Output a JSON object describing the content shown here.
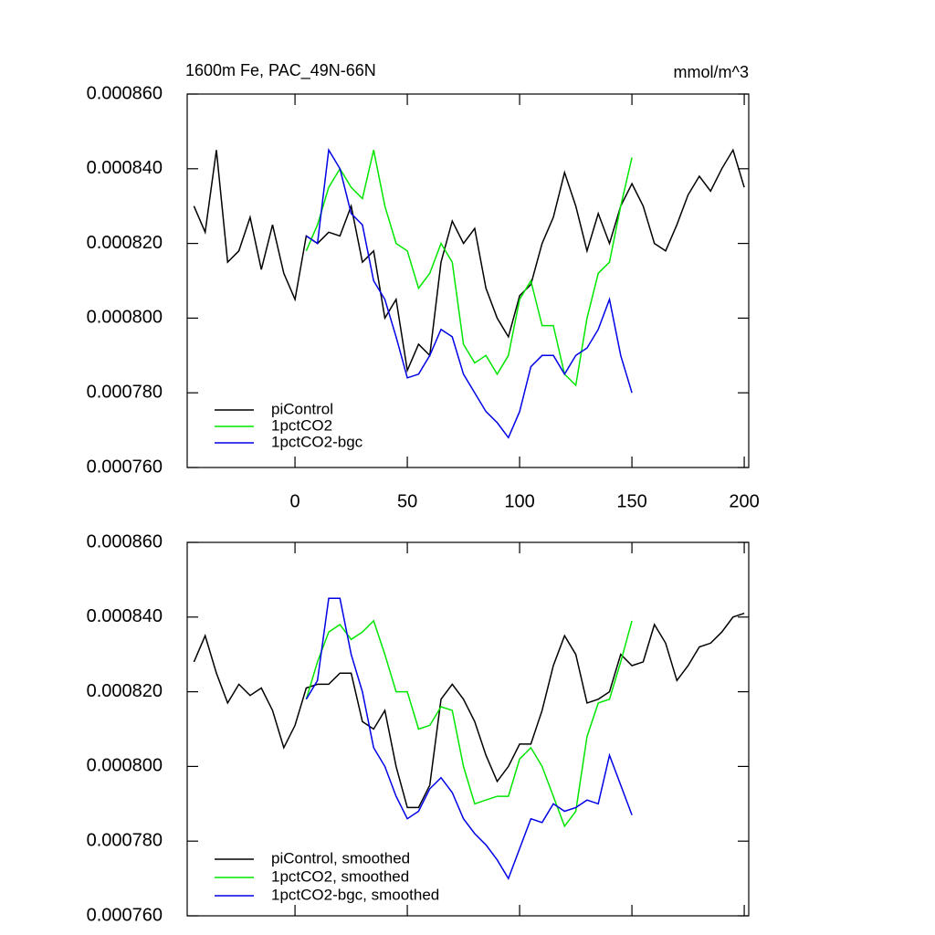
{
  "chart_data": [
    {
      "type": "line",
      "title": "1600m Fe, PAC_49N-66N",
      "units": "mmol/m^3",
      "x": [
        -45,
        -40,
        -35,
        -30,
        -25,
        -20,
        -15,
        -10,
        -5,
        0,
        5,
        10,
        15,
        20,
        25,
        30,
        35,
        40,
        45,
        50,
        55,
        60,
        65,
        70,
        75,
        80,
        85,
        90,
        95,
        100,
        105,
        110,
        115,
        120,
        125,
        130,
        135,
        140,
        145,
        150,
        155,
        160,
        165,
        170,
        175,
        180,
        185,
        190,
        195,
        200
      ],
      "xlim": [
        -48,
        202
      ],
      "xticks": [
        0,
        50,
        100,
        150,
        200
      ],
      "show_xtick_labels": true,
      "ylim": [
        0.00076,
        0.00086
      ],
      "yticks": [
        {
          "value": 0.00076,
          "label": "0.000760"
        },
        {
          "value": 0.00078,
          "label": "0.000780"
        },
        {
          "value": 0.0008,
          "label": "0.000800"
        },
        {
          "value": 0.00082,
          "label": "0.000820"
        },
        {
          "value": 0.00084,
          "label": "0.000840"
        },
        {
          "value": 0.00086,
          "label": "0.000860"
        }
      ],
      "legend": "bottom left",
      "series": [
        {
          "name": "piControl",
          "color": "#000000",
          "values": [
            0.00083,
            0.000823,
            0.000845,
            0.000815,
            0.000818,
            0.000827,
            0.000813,
            0.000825,
            0.000812,
            0.000805,
            0.000822,
            0.00082,
            0.000823,
            0.000822,
            0.00083,
            0.000815,
            0.000818,
            0.0008,
            0.000805,
            0.000786,
            0.000793,
            0.00079,
            0.000815,
            0.000826,
            0.00082,
            0.000824,
            0.000808,
            0.0008,
            0.000795,
            0.000806,
            0.000809,
            0.00082,
            0.000827,
            0.000839,
            0.00083,
            0.000818,
            0.000828,
            0.00082,
            0.00083,
            0.000836,
            0.00083,
            0.00082,
            0.000818,
            0.000825,
            0.000833,
            0.000838,
            0.000834,
            0.00084,
            0.000845,
            0.000835
          ]
        },
        {
          "name": "1pctCO2",
          "color": "#00e600",
          "values": [
            null,
            null,
            null,
            null,
            null,
            null,
            null,
            null,
            null,
            null,
            0.000818,
            0.000825,
            0.000835,
            0.00084,
            0.000835,
            0.000832,
            0.000845,
            0.00083,
            0.00082,
            0.000818,
            0.000808,
            0.000812,
            0.00082,
            0.000815,
            0.000793,
            0.000788,
            0.00079,
            0.000785,
            0.00079,
            0.000805,
            0.00081,
            0.000798,
            0.000798,
            0.000785,
            0.000782,
            0.0008,
            0.000812,
            0.000815,
            0.00083,
            0.000843,
            null,
            null,
            null,
            null,
            null,
            null,
            null,
            null,
            null,
            null
          ]
        },
        {
          "name": "1pctCO2-bgc",
          "color": "#0000e6",
          "values": [
            null,
            null,
            null,
            null,
            null,
            null,
            null,
            null,
            null,
            null,
            0.000822,
            0.00082,
            0.000845,
            0.00084,
            0.000828,
            0.000825,
            0.00081,
            0.000805,
            0.000795,
            0.000784,
            0.000785,
            0.00079,
            0.000797,
            0.000795,
            0.000785,
            0.00078,
            0.000775,
            0.000772,
            0.000768,
            0.000775,
            0.000787,
            0.00079,
            0.00079,
            0.000785,
            0.00079,
            0.000792,
            0.000797,
            0.000805,
            0.00079,
            0.00078,
            null,
            null,
            null,
            null,
            null,
            null,
            null,
            null,
            null,
            null
          ]
        }
      ]
    },
    {
      "type": "line",
      "x": [
        -45,
        -40,
        -35,
        -30,
        -25,
        -20,
        -15,
        -10,
        -5,
        0,
        5,
        10,
        15,
        20,
        25,
        30,
        35,
        40,
        45,
        50,
        55,
        60,
        65,
        70,
        75,
        80,
        85,
        90,
        95,
        100,
        105,
        110,
        115,
        120,
        125,
        130,
        135,
        140,
        145,
        150,
        155,
        160,
        165,
        170,
        175,
        180,
        185,
        190,
        195,
        200
      ],
      "xlim": [
        -48,
        202
      ],
      "xticks": [
        0,
        50,
        100,
        150,
        200
      ],
      "show_xtick_labels": false,
      "ylim": [
        0.00076,
        0.00086
      ],
      "yticks": [
        {
          "value": 0.00076,
          "label": "0.000760"
        },
        {
          "value": 0.00078,
          "label": "0.000780"
        },
        {
          "value": 0.0008,
          "label": "0.000800"
        },
        {
          "value": 0.00082,
          "label": "0.000820"
        },
        {
          "value": 0.00084,
          "label": "0.000840"
        },
        {
          "value": 0.00086,
          "label": "0.000860"
        }
      ],
      "legend": "bottom left",
      "series": [
        {
          "name": "piControl, smoothed",
          "color": "#000000",
          "values": [
            0.000828,
            0.000835,
            0.000825,
            0.000817,
            0.000822,
            0.000819,
            0.000821,
            0.000815,
            0.000805,
            0.000811,
            0.000821,
            0.000822,
            0.000822,
            0.000825,
            0.000825,
            0.000812,
            0.00081,
            0.000815,
            0.0008,
            0.000789,
            0.000789,
            0.000795,
            0.000818,
            0.000822,
            0.000818,
            0.000812,
            0.000803,
            0.000796,
            0.0008,
            0.000806,
            0.000806,
            0.000815,
            0.000827,
            0.000835,
            0.00083,
            0.000817,
            0.000818,
            0.00082,
            0.00083,
            0.000827,
            0.000828,
            0.000838,
            0.000833,
            0.000823,
            0.000827,
            0.000832,
            0.000833,
            0.000836,
            0.00084,
            0.000841
          ]
        },
        {
          "name": "1pctCO2, smoothed",
          "color": "#00e600",
          "values": [
            null,
            null,
            null,
            null,
            null,
            null,
            null,
            null,
            null,
            null,
            0.000818,
            0.000828,
            0.000836,
            0.000838,
            0.000834,
            0.000836,
            0.000839,
            0.00083,
            0.00082,
            0.00082,
            0.00081,
            0.000811,
            0.000816,
            0.000815,
            0.0008,
            0.00079,
            0.000791,
            0.000792,
            0.000792,
            0.000802,
            0.000805,
            0.0008,
            0.000792,
            0.000784,
            0.000788,
            0.000808,
            0.000817,
            0.000818,
            0.000828,
            0.000839,
            null,
            null,
            null,
            null,
            null,
            null,
            null,
            null,
            null,
            null
          ]
        },
        {
          "name": "1pctCO2-bgc, smoothed",
          "color": "#0000e6",
          "values": [
            null,
            null,
            null,
            null,
            null,
            null,
            null,
            null,
            null,
            null,
            0.000818,
            0.000823,
            0.000845,
            0.000845,
            0.00083,
            0.00082,
            0.000805,
            0.0008,
            0.000792,
            0.000786,
            0.000788,
            0.000794,
            0.000797,
            0.000793,
            0.000786,
            0.000782,
            0.000779,
            0.000775,
            0.00077,
            0.000778,
            0.000786,
            0.000785,
            0.00079,
            0.000788,
            0.000789,
            0.000791,
            0.00079,
            0.000803,
            0.000795,
            0.000787,
            null,
            null,
            null,
            null,
            null,
            null,
            null,
            null,
            null,
            null
          ]
        }
      ]
    }
  ]
}
